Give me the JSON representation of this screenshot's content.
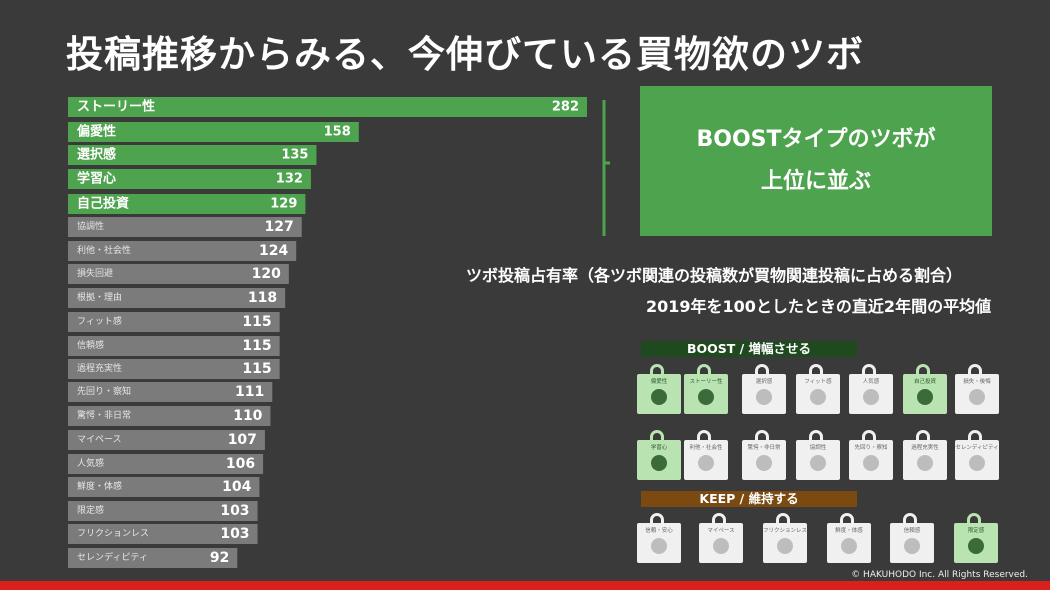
{
  "title": "投稿推移からみる、今伸びている買物欲のツボ",
  "callout": {
    "line1": "BOOSTタイプのツボが",
    "line2": "上位に並ぶ"
  },
  "note_line1": "ツボ投稿占有率（各ツボ関連の投稿数が買物関連投稿に占める割合）",
  "note_line2": "2019年を100としたときの直近2年間の平均値",
  "boost_label": "BOOST / 増幅させる",
  "keep_label": "KEEP / 維持する",
  "copyright": "© HAKUHODO Inc. All Rights Reserved.",
  "colors": {
    "highlight": "#4ea34e",
    "normal": "#7b7b7b",
    "background": "#3a3a3a",
    "boost_header": "#1f4a1f",
    "keep_header": "#7a4a10"
  },
  "boost_bags": [
    {
      "label": "偏愛性",
      "color": "green",
      "icon": "person-icon"
    },
    {
      "label": "ストーリー性",
      "color": "green",
      "icon": "people-icon"
    },
    {
      "label": "選択感",
      "color": "white",
      "icon": "person-icon"
    },
    {
      "label": "フィット感",
      "color": "white",
      "icon": "person-icon"
    },
    {
      "label": "人気感",
      "color": "white",
      "icon": "people-icon"
    },
    {
      "label": "自己投資",
      "color": "green",
      "icon": "person-icon"
    },
    {
      "label": "損失・後悔",
      "color": "white",
      "icon": "person-icon"
    },
    {
      "label": "学習心",
      "color": "green",
      "icon": "person-icon"
    },
    {
      "label": "利他・社会性",
      "color": "white",
      "icon": "globe-icon"
    },
    {
      "label": "驚愕・非日常",
      "color": "white",
      "icon": "person-icon"
    },
    {
      "label": "協調性",
      "color": "white",
      "icon": "people-icon"
    },
    {
      "label": "先回り・察知",
      "color": "white",
      "icon": "person-icon"
    },
    {
      "label": "過程充実性",
      "color": "white",
      "icon": "person-icon"
    },
    {
      "label": "セレンディピティ",
      "color": "white",
      "icon": "person-icon"
    }
  ],
  "keep_bags": [
    {
      "label": "信頼・安心",
      "color": "white",
      "icon": "person-icon"
    },
    {
      "label": "マイペース",
      "color": "white",
      "icon": "person-icon"
    },
    {
      "label": "フリクションレス",
      "color": "white",
      "icon": "person-icon"
    },
    {
      "label": "鮮度・体感",
      "color": "white",
      "icon": "person-icon"
    },
    {
      "label": "信頼感",
      "color": "white",
      "icon": "person-icon"
    },
    {
      "label": "限定感",
      "color": "green",
      "icon": "person-icon"
    }
  ],
  "chart_data": {
    "type": "bar",
    "orientation": "horizontal",
    "categories": [
      "ストーリー性",
      "偏愛性",
      "選択感",
      "学習心",
      "自己投資",
      "協調性",
      "利他・社会性",
      "損失回避",
      "根拠・理由",
      "フィット感",
      "信頼感",
      "過程充実性",
      "先回り・察知",
      "驚愕・非日常",
      "マイペース",
      "人気感",
      "鮮度・体感",
      "限定感",
      "フリクションレス",
      "セレンディピティ"
    ],
    "values": [
      282,
      158,
      135,
      132,
      129,
      127,
      124,
      120,
      118,
      115,
      115,
      115,
      111,
      110,
      107,
      106,
      104,
      103,
      103,
      92
    ],
    "highlighted": [
      true,
      true,
      true,
      true,
      true,
      false,
      false,
      false,
      false,
      false,
      false,
      false,
      false,
      false,
      false,
      false,
      false,
      false,
      false,
      false
    ],
    "title": "",
    "xlabel": "",
    "ylabel": "",
    "xlim": [
      0,
      282
    ]
  }
}
